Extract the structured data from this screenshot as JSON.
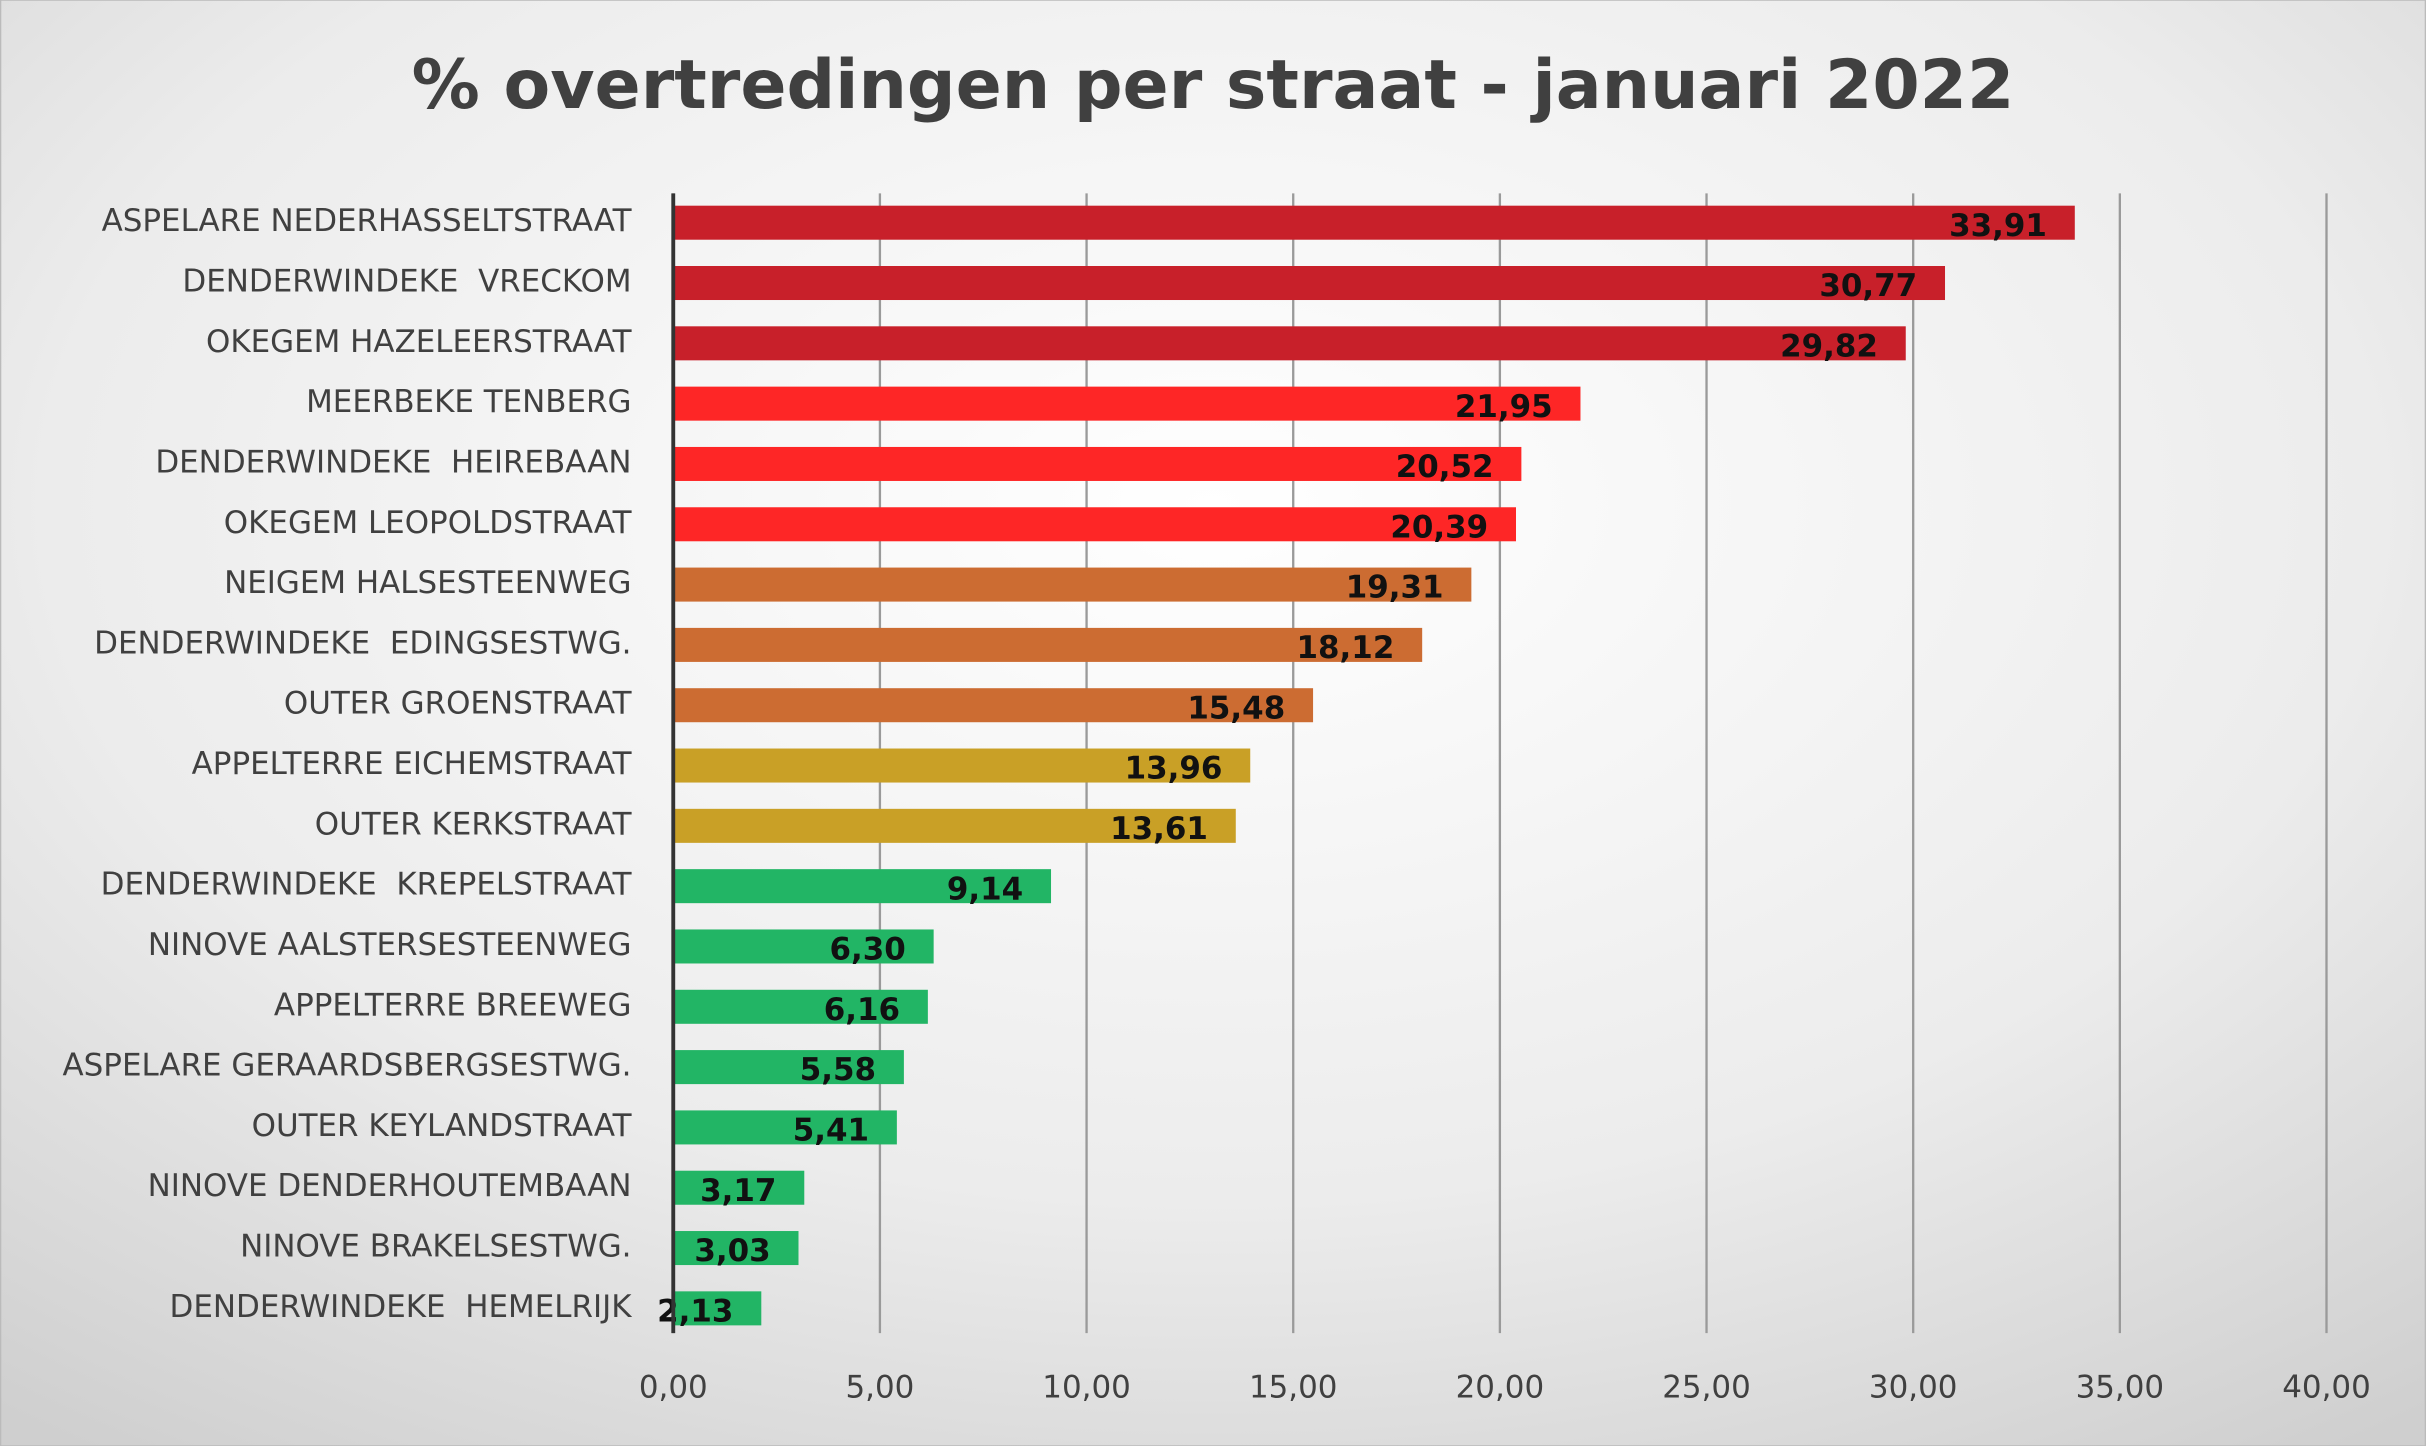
{
  "chart_data": {
    "type": "hbar",
    "title": "% overtredingen per straat - januari 2022",
    "categories": [
      "ASPELARE NEDERHASSELTSTRAAT",
      "DENDERWINDEKE  VRECKOM",
      "OKEGEM HAZELEERSTRAAT",
      "MEERBEKE TENBERG",
      "DENDERWINDEKE  HEIREBAAN",
      "OKEGEM LEOPOLDSTRAAT",
      "NEIGEM HALSESTEENWEG",
      "DENDERWINDEKE  EDINGSESTWG.",
      "OUTER GROENSTRAAT",
      "APPELTERRE EICHEMSTRAAT",
      "OUTER KERKSTRAAT",
      "DENDERWINDEKE  KREPELSTRAAT",
      "NINOVE AALSTERSESTEENWEG",
      "APPELTERRE BREEWEG",
      "ASPELARE GERAARDSBERGSESTWG.",
      "OUTER KEYLANDSTRAAT",
      "NINOVE DENDERHOUTEMBAAN",
      "NINOVE BRAKELSESTWG.",
      "DENDERWINDEKE  HEMELRIJK"
    ],
    "values": [
      33.91,
      30.77,
      29.82,
      21.95,
      20.52,
      20.39,
      19.31,
      18.12,
      15.48,
      13.96,
      13.61,
      9.14,
      6.3,
      6.16,
      5.58,
      5.41,
      3.17,
      3.03,
      2.13
    ],
    "value_labels": [
      "33,91",
      "30,77",
      "29,82",
      "21,95",
      "20,52",
      "20,39",
      "19,31",
      "18,12",
      "15,48",
      "13,96",
      "13,61",
      "9,14",
      "6,30",
      "6,16",
      "5,58",
      "5,41",
      "3,17",
      "3,03",
      "2,13"
    ],
    "colors": [
      "#c8202a",
      "#c8202a",
      "#c8202a",
      "#fe2626",
      "#fe2626",
      "#fe2626",
      "#cc6c32",
      "#cc6c32",
      "#cc6c32",
      "#c9a026",
      "#c9a026",
      "#22b565",
      "#22b565",
      "#22b565",
      "#22b565",
      "#22b565",
      "#22b565",
      "#22b565",
      "#22b565"
    ],
    "xlim": [
      0,
      40
    ],
    "xticks": [
      {
        "value": 0,
        "label": "0,00"
      },
      {
        "value": 5,
        "label": "5,00"
      },
      {
        "value": 10,
        "label": "10,00"
      },
      {
        "value": 15,
        "label": "15,00"
      },
      {
        "value": 20,
        "label": "20,00"
      },
      {
        "value": 25,
        "label": "25,00"
      },
      {
        "value": 30,
        "label": "30,00"
      },
      {
        "value": 35,
        "label": "35,00"
      },
      {
        "value": 40,
        "label": "40,00"
      }
    ],
    "grid": true
  }
}
